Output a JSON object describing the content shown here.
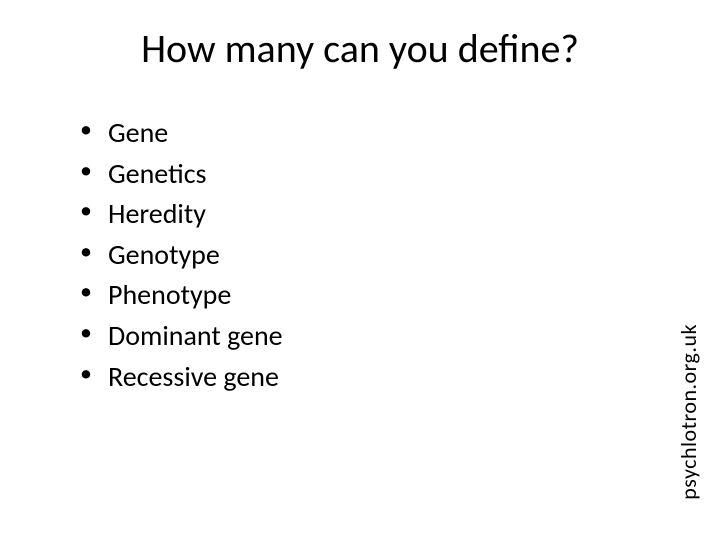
{
  "slide": {
    "title": "How many can you define?",
    "title_fontsize": 40,
    "title_color": "#000000",
    "bullets": [
      "Gene",
      "Genetics",
      "Heredity",
      "Genotype",
      "Phenotype",
      "Dominant gene",
      "Recessive gene"
    ],
    "bullet_fontsize": 28,
    "bullet_color": "#000000",
    "bullet_marker": "•",
    "footer": "psychlotron.org.uk",
    "footer_fontsize": 22,
    "footer_color": "#000000",
    "background_color": "#ffffff",
    "font_family": "Calibri"
  }
}
